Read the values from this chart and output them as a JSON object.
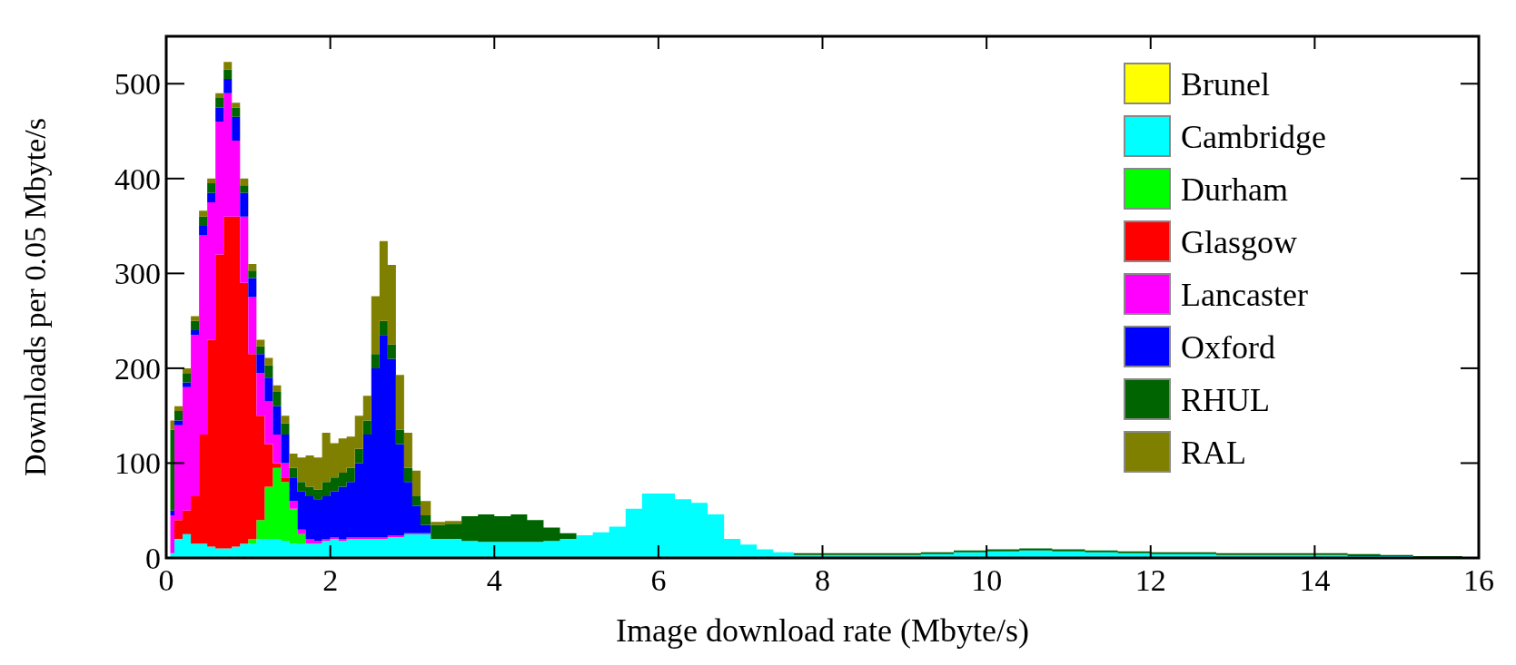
{
  "chart_data": {
    "type": "area",
    "stacked": true,
    "xlabel": "Image download rate (Mbyte/s)",
    "ylabel": "Downloads per 0.05 Mbyte/s",
    "x": [
      0.05,
      0.15,
      0.25,
      0.35,
      0.45,
      0.55,
      0.65,
      0.75,
      0.85,
      0.95,
      1.05,
      1.15,
      1.25,
      1.35,
      1.45,
      1.55,
      1.65,
      1.75,
      1.85,
      1.95,
      2.05,
      2.15,
      2.25,
      2.35,
      2.45,
      2.55,
      2.65,
      2.75,
      2.85,
      2.95,
      3.05,
      3.15,
      3.3,
      3.5,
      3.7,
      3.9,
      4.1,
      4.3,
      4.5,
      4.7,
      4.9,
      5.1,
      5.3,
      5.5,
      5.7,
      5.9,
      6.1,
      6.3,
      6.5,
      6.7,
      6.9,
      7.1,
      7.3,
      7.5,
      7.8,
      8.2,
      8.6,
      9,
      9.4,
      9.8,
      10.2,
      10.6,
      11,
      11.4,
      11.8,
      12.2,
      12.6,
      13,
      13.4,
      13.8,
      14.2,
      14.6,
      15,
      15.4,
      15.8
    ],
    "series": [
      {
        "name": "Brunel",
        "color": "#ffff00",
        "values": [
          null,
          null,
          null,
          null,
          null,
          null,
          null,
          null,
          null,
          null,
          null,
          null,
          null,
          null,
          null,
          null,
          null,
          null,
          null,
          null,
          null,
          null,
          null,
          null,
          null,
          null,
          null,
          null,
          null,
          null,
          null,
          null,
          null,
          null,
          null,
          null,
          null,
          null,
          null,
          null,
          null,
          null,
          null,
          null,
          null,
          null,
          null,
          null,
          null,
          null,
          null,
          null,
          null,
          null,
          null,
          null,
          null,
          null,
          null,
          null,
          null,
          null,
          null,
          null,
          null,
          null,
          null,
          null,
          null,
          null,
          null,
          null,
          null,
          null,
          null
        ]
      },
      {
        "name": "Cambridge",
        "color": "#00ffff",
        "values": [
          5,
          20,
          25,
          15,
          15,
          12,
          10,
          10,
          12,
          15,
          15,
          20,
          20,
          20,
          18,
          15,
          15,
          15,
          15,
          18,
          20,
          18,
          20,
          20,
          20,
          20,
          20,
          22,
          22,
          25,
          25,
          25,
          20,
          20,
          18,
          17,
          17,
          17,
          17,
          18,
          20,
          24,
          27,
          33,
          52,
          68,
          68,
          62,
          58,
          46,
          20,
          14,
          9,
          6,
          3,
          3,
          3,
          3,
          4,
          6,
          7,
          8,
          7,
          6,
          5,
          4,
          4,
          3,
          3,
          3,
          3,
          2,
          2,
          1,
          1
        ]
      },
      {
        "name": "Durham",
        "color": "#00ff00",
        "values": [
          0,
          0,
          0,
          0,
          0,
          0,
          0,
          0,
          0,
          0,
          5,
          20,
          55,
          75,
          62,
          37,
          10,
          0,
          0,
          0,
          0,
          0,
          0,
          0,
          0,
          0,
          0,
          0,
          0,
          0,
          0,
          0,
          0,
          0,
          0,
          0,
          0,
          0,
          0,
          0,
          0,
          0,
          0,
          0,
          0,
          0,
          0,
          0,
          0,
          0,
          0,
          0,
          0,
          0,
          0,
          0,
          0,
          0,
          0,
          0,
          0,
          0,
          0,
          0,
          0,
          0,
          0,
          0,
          0,
          0,
          0,
          0,
          0,
          0,
          0
        ]
      },
      {
        "name": "Glasgow",
        "color": "#ff0000",
        "values": [
          0,
          20,
          25,
          50,
          115,
          218,
          310,
          350,
          348,
          275,
          195,
          110,
          45,
          5,
          5,
          0,
          0,
          0,
          0,
          0,
          0,
          0,
          0,
          0,
          0,
          0,
          0,
          0,
          0,
          0,
          0,
          0,
          0,
          0,
          0,
          0,
          0,
          0,
          0,
          0,
          0,
          0,
          0,
          0,
          0,
          0,
          0,
          0,
          0,
          0,
          0,
          0,
          0,
          0,
          0,
          0,
          0,
          0,
          0,
          0,
          0,
          0,
          0,
          0,
          0,
          0,
          0,
          0,
          0,
          0,
          0,
          0,
          0,
          0,
          0
        ]
      },
      {
        "name": "Lancaster",
        "color": "#ff00ff",
        "values": [
          40,
          100,
          130,
          170,
          210,
          145,
          140,
          130,
          80,
          70,
          60,
          45,
          45,
          30,
          15,
          8,
          5,
          5,
          3,
          2,
          2,
          2,
          2,
          2,
          2,
          2,
          2,
          2,
          2,
          1,
          1,
          1,
          0,
          0,
          0,
          0,
          0,
          0,
          0,
          0,
          0,
          0,
          0,
          0,
          0,
          0,
          0,
          0,
          0,
          0,
          0,
          0,
          0,
          0,
          0,
          0,
          0,
          0,
          0,
          0,
          0,
          0,
          0,
          0,
          0,
          0,
          0,
          0,
          0,
          0,
          0,
          0,
          0,
          0,
          0
        ]
      },
      {
        "name": "Oxford",
        "color": "#0000ff",
        "values": [
          5,
          5,
          5,
          5,
          10,
          10,
          15,
          15,
          25,
          25,
          20,
          20,
          25,
          30,
          30,
          25,
          40,
          45,
          44,
          45,
          48,
          55,
          58,
          78,
          108,
          178,
          213,
          186,
          96,
          54,
          29,
          9,
          0,
          0,
          0,
          0,
          0,
          0,
          0,
          0,
          0,
          0,
          0,
          0,
          0,
          0,
          0,
          0,
          0,
          0,
          0,
          0,
          0,
          0,
          0,
          0,
          0,
          0,
          0,
          0,
          0,
          0,
          0,
          0,
          0,
          0,
          0,
          0,
          0,
          0,
          0,
          0,
          0,
          0,
          0
        ]
      },
      {
        "name": "RHUL",
        "color": "#006400",
        "values": [
          85,
          10,
          10,
          10,
          10,
          10,
          10,
          10,
          10,
          8,
          8,
          8,
          13,
          15,
          12,
          10,
          10,
          10,
          10,
          15,
          15,
          15,
          15,
          15,
          15,
          15,
          15,
          15,
          15,
          15,
          10,
          10,
          15,
          16,
          26,
          29,
          27,
          29,
          23,
          14,
          6,
          0,
          0,
          0,
          0,
          0,
          0,
          0,
          0,
          0,
          0,
          0,
          0,
          0,
          2,
          2,
          2,
          2,
          2,
          2,
          2,
          2,
          2,
          2,
          2,
          2,
          2,
          2,
          2,
          2,
          2,
          2,
          1,
          1,
          1
        ]
      },
      {
        "name": "RAL",
        "color": "#808000",
        "values": [
          10,
          5,
          5,
          5,
          6,
          5,
          5,
          8,
          5,
          7,
          7,
          7,
          8,
          7,
          8,
          15,
          26,
          33,
          34,
          52,
          36,
          36,
          33,
          35,
          26,
          61,
          84,
          84,
          58,
          37,
          27,
          15,
          3,
          3,
          0,
          0,
          0,
          0,
          0,
          0,
          0,
          0,
          0,
          0,
          0,
          0,
          0,
          0,
          0,
          0,
          0,
          0,
          0,
          0,
          0,
          0,
          0,
          0,
          0,
          0,
          0,
          0,
          0,
          0,
          0,
          0,
          0,
          0,
          0,
          0,
          0,
          0,
          0,
          0,
          0
        ]
      }
    ],
    "xlim": [
      0,
      16
    ],
    "xticks": [
      0,
      2,
      4,
      6,
      8,
      10,
      12,
      14,
      16
    ],
    "ylim": [
      0,
      550
    ],
    "yticks": [
      0,
      100,
      200,
      300,
      400,
      500
    ],
    "grid": false,
    "legend": "top right"
  }
}
